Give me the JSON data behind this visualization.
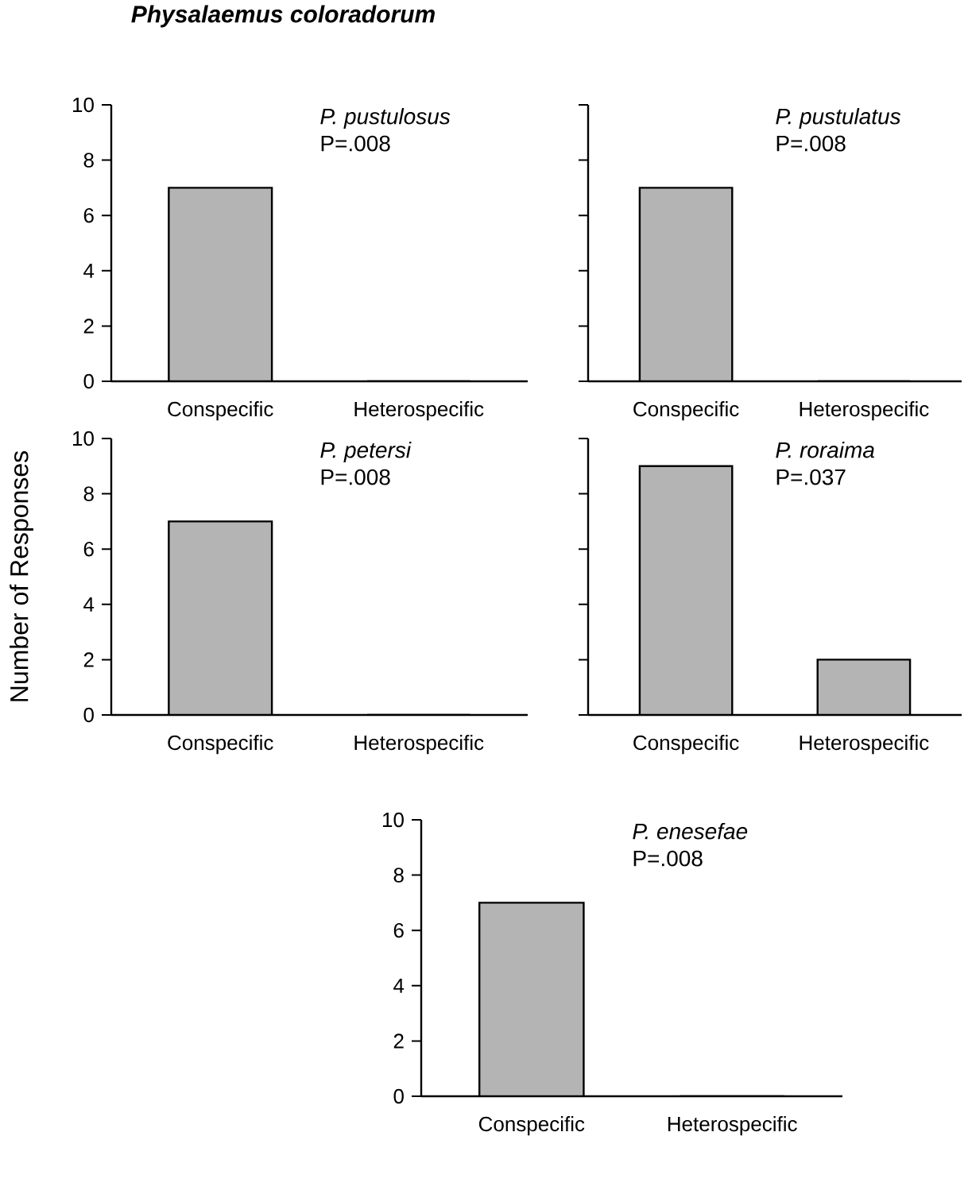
{
  "chart_data": [
    {
      "type": "bar",
      "title": "Physalaemus coloradorum",
      "categories": [
        "Conspecific",
        "Heterospecific"
      ],
      "values": [
        7,
        0
      ],
      "color": "#b4b4b4",
      "ylim": [
        0,
        10
      ],
      "yticks": [
        0,
        2,
        4,
        6,
        8,
        10
      ],
      "annotations": [
        "P. pustulosus",
        "P=.008"
      ]
    },
    {
      "type": "bar",
      "categories": [
        "Conspecific",
        "Heterospecific"
      ],
      "values": [
        7,
        0
      ],
      "color": "#b4b4b4",
      "ylim": [
        0,
        10
      ],
      "yticks": [
        0,
        2,
        4,
        6,
        8,
        10
      ],
      "tick_labels": "x",
      "annotations": [
        "P. pustulatus",
        "P=.008"
      ]
    },
    {
      "type": "bar",
      "ylabel": "Number of Responses",
      "categories": [
        "Conspecific",
        "Heterospecific"
      ],
      "values": [
        7,
        0
      ],
      "color": "#b4b4b4",
      "ylim": [
        0,
        10
      ],
      "yticks": [
        0,
        2,
        4,
        6,
        8,
        10
      ],
      "annotations": [
        "P. petersi",
        "P=.008"
      ]
    },
    {
      "type": "bar",
      "categories": [
        "Conspecific",
        "Heterospecific"
      ],
      "values": [
        9,
        2
      ],
      "color": "#b4b4b4",
      "ylim": [
        0,
        10
      ],
      "yticks": [
        0,
        2,
        4,
        6,
        8,
        10
      ],
      "tick_labels": "x",
      "annotations": [
        "P. roraima",
        "P=.037"
      ]
    },
    {
      "type": "bar",
      "categories": [
        "Conspecific",
        "Heterospecific"
      ],
      "values": [
        7,
        0
      ],
      "color": "#b4b4b4",
      "ylim": [
        0,
        10
      ],
      "yticks": [
        0,
        2,
        4,
        6,
        8,
        10
      ],
      "annotations": [
        "P. enesefae",
        "P=.008"
      ]
    }
  ]
}
